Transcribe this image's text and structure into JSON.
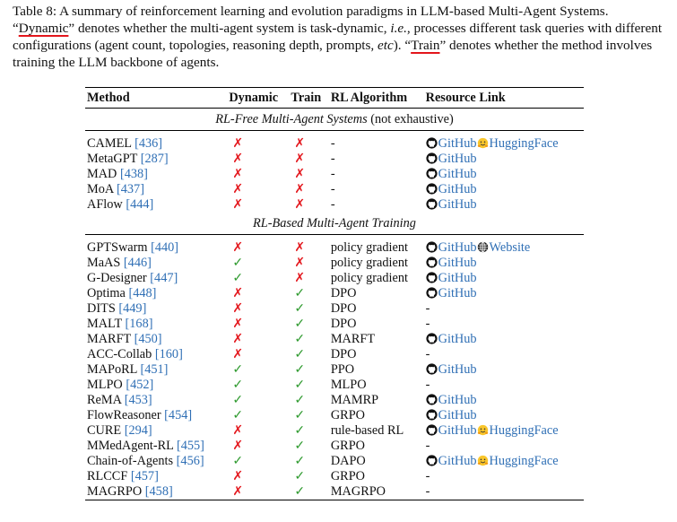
{
  "caption": {
    "parts": [
      "Table 8: A summary of reinforcement learning and evolution paradigms in LLM-based Multi-Agent Systems. “",
      "Dynamic",
      "” denotes whether the multi-agent system is task-dynamic, ",
      "i.e.",
      ", processes different task queries with different configurations (agent count, topologies, reasoning depth, prompts, ",
      "etc",
      "). “",
      "Train",
      "” denotes whether the method involves training the LLM backbone of agents."
    ]
  },
  "table": {
    "headers": [
      "Method",
      "Dynamic",
      "Train",
      "RL Algorithm",
      "Resource Link"
    ],
    "mark_colors": {
      "✗": "#e3161c",
      "✓": "#2f9a2f"
    },
    "sections": [
      {
        "title": "RL-Free Multi-Agent Systems",
        "note": "(not exhaustive)",
        "rows": [
          {
            "method": "CAMEL",
            "ref": "[436]",
            "dynamic": "✗",
            "train": "✗",
            "algorithm": "-",
            "links": [
              {
                "label": "GitHub",
                "icon": "github"
              },
              {
                "label": "HuggingFace",
                "icon": "huggingface"
              }
            ]
          },
          {
            "method": "MetaGPT",
            "ref": "[287]",
            "dynamic": "✗",
            "train": "✗",
            "algorithm": "-",
            "links": [
              {
                "label": "GitHub",
                "icon": "github"
              }
            ]
          },
          {
            "method": "MAD",
            "ref": "[438]",
            "dynamic": "✗",
            "train": "✗",
            "algorithm": "-",
            "links": [
              {
                "label": "GitHub",
                "icon": "github"
              }
            ]
          },
          {
            "method": "MoA",
            "ref": "[437]",
            "dynamic": "✗",
            "train": "✗",
            "algorithm": "-",
            "links": [
              {
                "label": "GitHub",
                "icon": "github"
              }
            ]
          },
          {
            "method": "AFlow",
            "ref": "[444]",
            "dynamic": "✗",
            "train": "✗",
            "algorithm": "-",
            "links": [
              {
                "label": "GitHub",
                "icon": "github"
              }
            ]
          }
        ]
      },
      {
        "title": "RL-Based Multi-Agent Training",
        "rows": [
          {
            "method": "GPTSwarm",
            "ref": "[440]",
            "dynamic": "✗",
            "train": "✗",
            "algorithm": "policy gradient",
            "links": [
              {
                "label": "GitHub",
                "icon": "github"
              },
              {
                "label": "Website",
                "icon": "globe"
              }
            ]
          },
          {
            "method": "MaAS",
            "ref": "[446]",
            "dynamic": "✓",
            "train": "✗",
            "algorithm": "policy gradient",
            "links": [
              {
                "label": "GitHub",
                "icon": "github"
              }
            ]
          },
          {
            "method": "G-Designer",
            "ref": "[447]",
            "dynamic": "✓",
            "train": "✗",
            "algorithm": "policy gradient",
            "links": [
              {
                "label": "GitHub",
                "icon": "github"
              }
            ]
          },
          {
            "method": "Optima",
            "ref": "[448]",
            "dynamic": "✗",
            "train": "✓",
            "algorithm": "DPO",
            "links": [
              {
                "label": "GitHub",
                "icon": "github"
              }
            ]
          },
          {
            "method": "DITS",
            "ref": "[449]",
            "dynamic": "✗",
            "train": "✓",
            "algorithm": "DPO",
            "links": "-"
          },
          {
            "method": "MALT",
            "ref": "[168]",
            "dynamic": "✗",
            "train": "✓",
            "algorithm": "DPO",
            "links": "-"
          },
          {
            "method": "MARFT",
            "ref": "[450]",
            "dynamic": "✗",
            "train": "✓",
            "algorithm": "MARFT",
            "links": [
              {
                "label": "GitHub",
                "icon": "github"
              }
            ]
          },
          {
            "method": "ACC-Collab",
            "ref": "[160]",
            "dynamic": "✗",
            "train": "✓",
            "algorithm": "DPO",
            "links": "-"
          },
          {
            "method": "MAPoRL",
            "ref": "[451]",
            "dynamic": "✓",
            "train": "✓",
            "algorithm": "PPO",
            "links": [
              {
                "label": "GitHub",
                "icon": "github"
              }
            ]
          },
          {
            "method": "MLPO",
            "ref": "[452]",
            "dynamic": "✓",
            "train": "✓",
            "algorithm": "MLPO",
            "links": "-"
          },
          {
            "method": "ReMA",
            "ref": "[453]",
            "dynamic": "✓",
            "train": "✓",
            "algorithm": "MAMRP",
            "links": [
              {
                "label": "GitHub",
                "icon": "github"
              }
            ]
          },
          {
            "method": "FlowReasoner",
            "ref": "[454]",
            "dynamic": "✓",
            "train": "✓",
            "algorithm": "GRPO",
            "links": [
              {
                "label": "GitHub",
                "icon": "github"
              }
            ]
          },
          {
            "method": "CURE",
            "ref": "[294]",
            "dynamic": "✗",
            "train": "✓",
            "algorithm": "rule-based RL",
            "links": [
              {
                "label": "GitHub",
                "icon": "github"
              },
              {
                "label": "HuggingFace",
                "icon": "huggingface"
              }
            ]
          },
          {
            "method": "MMedAgent-RL",
            "ref": "[455]",
            "dynamic": "✗",
            "train": "✓",
            "algorithm": "GRPO",
            "links": "-"
          },
          {
            "method": "Chain-of-Agents",
            "ref": "[456]",
            "dynamic": "✓",
            "train": "✓",
            "algorithm": "DAPO",
            "links": [
              {
                "label": "GitHub",
                "icon": "github"
              },
              {
                "label": "HuggingFace",
                "icon": "huggingface"
              }
            ]
          },
          {
            "method": "RLCCF",
            "ref": "[457]",
            "dynamic": "✗",
            "train": "✓",
            "algorithm": "GRPO",
            "links": "-"
          },
          {
            "method": "MAGRPO",
            "ref": "[458]",
            "dynamic": "✗",
            "train": "✓",
            "algorithm": "MAGRPO",
            "links": "-"
          }
        ]
      }
    ]
  }
}
